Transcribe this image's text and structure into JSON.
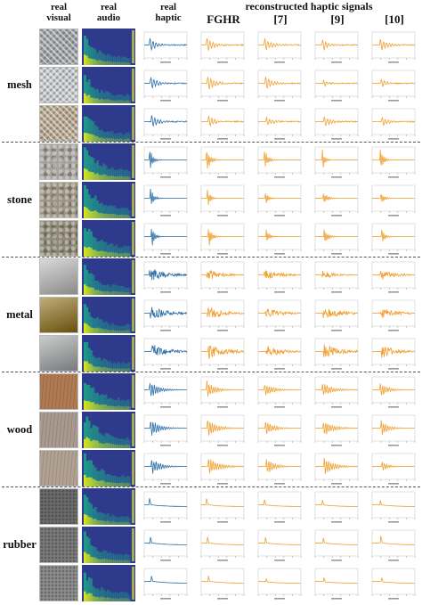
{
  "headers": {
    "real_visual": [
      "real",
      "visual"
    ],
    "real_audio": [
      "real",
      "audio"
    ],
    "real_haptic": [
      "real",
      "haptic"
    ],
    "reconstructed": "reconstructed haptic signals",
    "methods": [
      "FGHR",
      "[7]",
      "[9]",
      "[10]"
    ]
  },
  "materials": [
    {
      "label": "mesh",
      "style": "mesh",
      "amp": 0.55,
      "decay": 0.12,
      "noise": 0.35
    },
    {
      "label": "stone",
      "style": "spike",
      "amp": 0.85,
      "decay": 0.05,
      "noise": 0.05
    },
    {
      "label": "metal",
      "style": "dense",
      "amp": 0.75,
      "decay": 0.35,
      "noise": 0.45
    },
    {
      "label": "wood",
      "style": "burst",
      "amp": 0.65,
      "decay": 0.18,
      "noise": 0.2
    },
    {
      "label": "rubber",
      "style": "step",
      "amp": 0.7,
      "decay": 0.6,
      "noise": 0.08
    }
  ],
  "colors": {
    "real_haptic": "#2c6ea8",
    "reconstructed": "#f0a030",
    "spectrogram_bg": "#2e3a8c",
    "spectrogram_mid": "#1f9e89",
    "spectrogram_hi": "#dde318",
    "separator": "#555555"
  },
  "visual_textures": {
    "mesh": [
      "#9aa0a4",
      "#c6cacc",
      "#b7a58a"
    ],
    "stone": [
      "#a5a39c",
      "#9c9482",
      "#8f8877"
    ],
    "metal": [
      "#b8b9b7",
      "#8a6a10",
      "#9fa2a3"
    ],
    "wood": [
      "#b07a52",
      "#a89a8e",
      "#b1a193"
    ],
    "rubber": [
      "#6d6d6d",
      "#7c7c7c",
      "#8e8e8e"
    ]
  }
}
